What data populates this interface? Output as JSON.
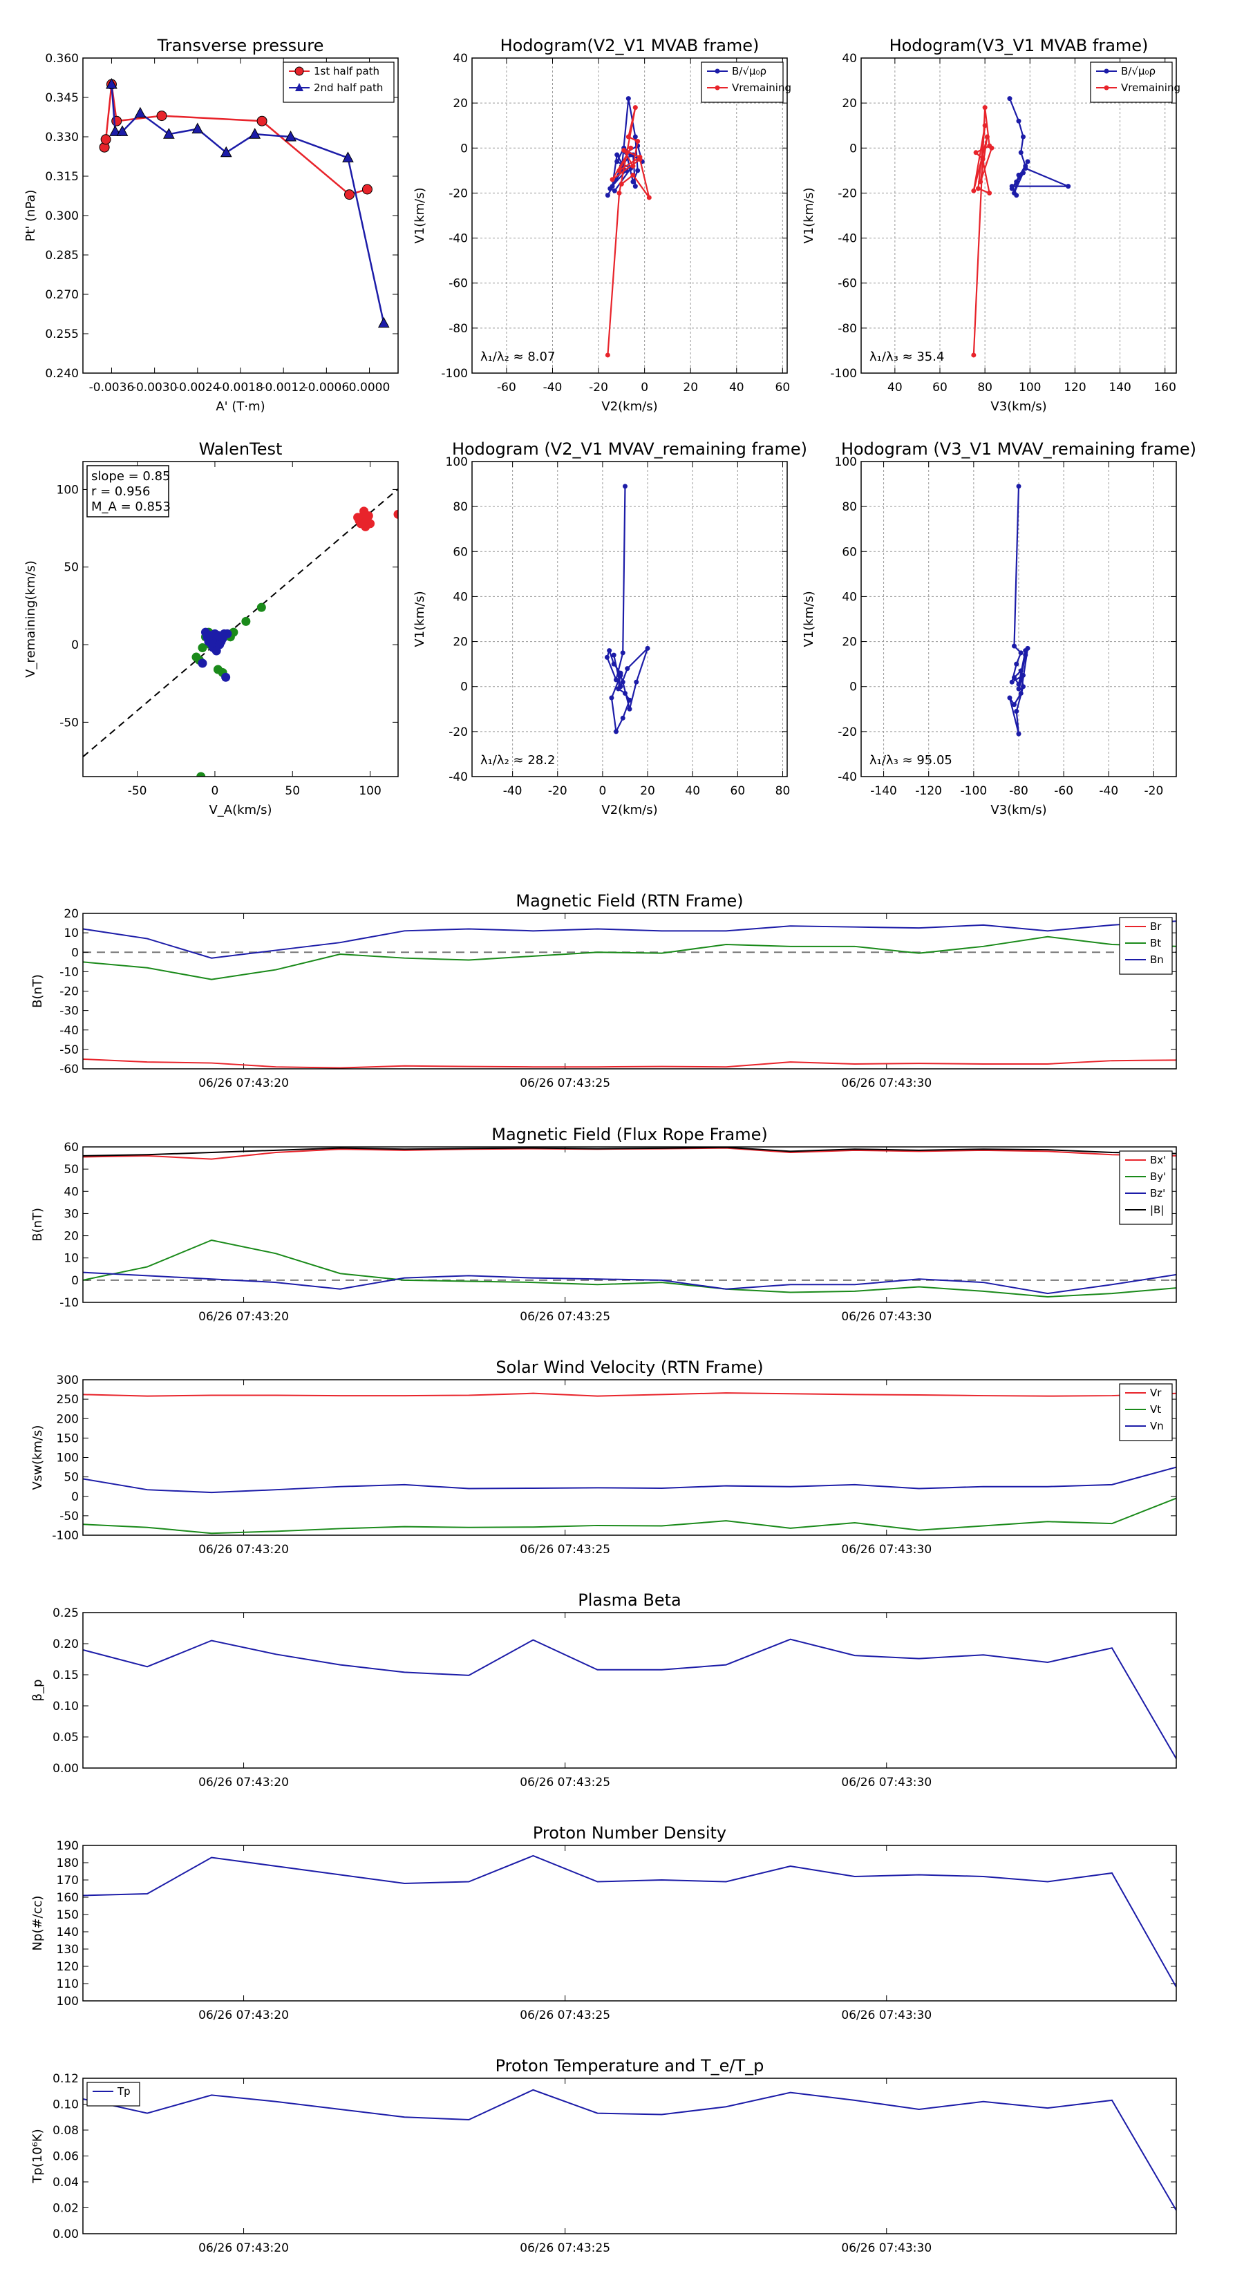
{
  "chart_data": [
    {
      "id": "pt",
      "type": "scatter",
      "title": "Transverse pressure",
      "xlabel": "A' (T·m)",
      "ylabel": "Pt' (nPa)",
      "xlim": [
        -0.004,
        0.0004
      ],
      "ylim": [
        0.24,
        0.36
      ],
      "xticks": [
        -0.0036,
        -0.003,
        -0.0024,
        -0.0018,
        -0.0012,
        -0.0006,
        0.0
      ],
      "xticklabels": [
        "-0.0036",
        "-0.0030",
        "-0.0024",
        "-0.0018",
        "-0.0012",
        "-0.0006",
        "0.0000"
      ],
      "yticks": [
        0.24,
        0.255,
        0.27,
        0.285,
        0.3,
        0.315,
        0.33,
        0.345,
        0.36
      ],
      "yticklabels": [
        "0.240",
        "0.255",
        "0.270",
        "0.285",
        "0.300",
        "0.315",
        "0.330",
        "0.345",
        "0.360"
      ],
      "grid": false,
      "legend_loc": "top-right",
      "series": [
        {
          "name": "1st half path",
          "color": "#e8242b",
          "marker": "circle",
          "x": [
            -0.0037,
            -0.00368,
            -0.0036,
            -0.00353,
            -0.0029,
            -0.0015,
            -0.00028,
            -3e-05
          ],
          "y": [
            0.326,
            0.329,
            0.35,
            0.336,
            0.338,
            0.336,
            0.308,
            0.31
          ]
        },
        {
          "name": "2nd half path",
          "color": "#1c1ca8",
          "marker": "triangle",
          "x": [
            -0.0036,
            -0.00355,
            -0.00345,
            -0.0032,
            -0.0028,
            -0.0024,
            -0.002,
            -0.0016,
            -0.0011,
            -0.0003,
            0.0002
          ],
          "y": [
            0.35,
            0.332,
            0.332,
            0.339,
            0.331,
            0.333,
            0.324,
            0.331,
            0.33,
            0.322,
            0.259
          ]
        }
      ]
    },
    {
      "id": "h1",
      "type": "line",
      "title": "Hodogram(V2_V1 MVAB frame)",
      "xlabel": "V2(km/s)",
      "ylabel": "V1(km/s)",
      "xlim": [
        -75,
        62
      ],
      "ylim": [
        -100,
        40
      ],
      "xticks": [
        -60,
        -40,
        -20,
        0,
        20,
        40,
        60
      ],
      "yticks": [
        -100,
        -80,
        -60,
        -40,
        -20,
        0,
        20,
        40
      ],
      "grid": true,
      "legend_loc": "top-right",
      "annotation": "λ₁/λ₂ ≈ 8.07",
      "series": [
        {
          "name": "B/√μ₀ρ",
          "color": "#1c1ca8",
          "x": [
            -16,
            -10,
            -7,
            -4,
            -3,
            -5,
            -8,
            -3,
            -1,
            -6,
            -10,
            -14,
            -12,
            -8,
            -15,
            -13,
            -6,
            -12,
            -9,
            -5,
            -4
          ],
          "y": [
            -21,
            -10,
            22,
            5,
            -10,
            -15,
            -2,
            1,
            -6,
            -3,
            -8,
            -17,
            -3,
            -10,
            -18,
            -19,
            -9,
            -6,
            0,
            -3,
            -17
          ]
        },
        {
          "name": "Vremaining",
          "color": "#e8242b",
          "x": [
            -16,
            -11,
            -4,
            -7,
            -3,
            -5,
            -9,
            -2,
            -11,
            -6,
            -14,
            -2,
            2,
            -5,
            -10
          ],
          "y": [
            -92,
            -20,
            18,
            5,
            3,
            -8,
            -1,
            -4,
            -10,
            0,
            -14,
            -5,
            -22,
            -12,
            -16
          ]
        }
      ]
    },
    {
      "id": "h2",
      "type": "line",
      "title": "Hodogram(V3_V1 MVAB frame)",
      "xlabel": "V3(km/s)",
      "ylabel": "V1(km/s)",
      "xlim": [
        25,
        165
      ],
      "ylim": [
        -100,
        40
      ],
      "xticks": [
        40,
        60,
        80,
        100,
        120,
        140,
        160
      ],
      "yticks": [
        -100,
        -80,
        -60,
        -40,
        -20,
        0,
        20,
        40
      ],
      "grid": true,
      "legend_loc": "top-right",
      "annotation": "λ₁/λ₃ ≈ 35.4",
      "series": [
        {
          "name": "B/√μ₀ρ",
          "color": "#1c1ca8",
          "x": [
            91,
            95,
            97,
            96,
            98,
            94,
            99,
            92,
            97,
            93,
            95,
            98,
            117,
            92,
            94
          ],
          "y": [
            22,
            12,
            5,
            -2,
            -8,
            -15,
            -6,
            -18,
            -11,
            -20,
            -12,
            -9,
            -17,
            -17,
            -21
          ]
        },
        {
          "name": "Vremaining",
          "color": "#e8242b",
          "x": [
            75,
            80,
            82,
            76,
            79,
            82,
            77,
            80,
            75,
            81,
            78,
            83
          ],
          "y": [
            -92,
            18,
            1,
            -2,
            -5,
            -20,
            -18,
            10,
            -19,
            5,
            -15,
            0
          ]
        }
      ]
    },
    {
      "id": "walen",
      "type": "scatter",
      "title": "WalenTest",
      "xlabel": "V_A(km/s)",
      "ylabel": "V_remaining(km/s)",
      "xlim": [
        -85,
        118
      ],
      "ylim": [
        -85,
        118
      ],
      "xticks": [
        -50,
        0,
        50,
        100
      ],
      "yticks": [
        -50,
        0,
        50,
        100
      ],
      "grid": false,
      "stats": [
        "slope = 0.85",
        "r = 0.956",
        "M_A = 0.853"
      ],
      "fit_slope": 0.85,
      "series": [
        {
          "name": "red",
          "color": "#e8242b",
          "x": [
            93,
            95,
            96,
            98,
            100,
            97,
            94,
            99,
            96,
            92,
            118
          ],
          "y": [
            80,
            82,
            84,
            80,
            78,
            76,
            78,
            83,
            86,
            82,
            84
          ]
        },
        {
          "name": "green",
          "color": "#1a8a1a",
          "x": [
            -10,
            -8,
            -6,
            -12,
            -4,
            0,
            5,
            10,
            12,
            20,
            30,
            2,
            -9,
            -3
          ],
          "y": [
            -10,
            -2,
            5,
            -8,
            8,
            2,
            -18,
            5,
            8,
            15,
            24,
            -16,
            -85,
            0
          ]
        },
        {
          "name": "blue",
          "color": "#1c1ca8",
          "x": [
            -8,
            -5,
            -2,
            0,
            2,
            4,
            6,
            -6,
            -1,
            3,
            5,
            8,
            -3,
            1,
            7,
            -4,
            0,
            5
          ],
          "y": [
            -12,
            5,
            0,
            3,
            6,
            2,
            7,
            8,
            -2,
            0,
            4,
            7,
            6,
            -4,
            -21,
            2,
            7,
            5
          ]
        }
      ]
    },
    {
      "id": "h3",
      "type": "line",
      "title": "Hodogram (V2_V1 MVAV_remaining frame)",
      "xlabel": "V2(km/s)",
      "ylabel": "V1(km/s)",
      "xlim": [
        -58,
        82
      ],
      "ylim": [
        -40,
        100
      ],
      "xticks": [
        -40,
        -20,
        0,
        20,
        40,
        60,
        80
      ],
      "yticks": [
        -40,
        -20,
        0,
        20,
        40,
        60,
        80,
        100
      ],
      "grid": true,
      "annotation": "λ₁/λ₂ ≈ 28.2",
      "series": [
        {
          "name": "V",
          "color": "#1c1ca8",
          "x": [
            10,
            9,
            6,
            2,
            3,
            5,
            8,
            7,
            10,
            12,
            9,
            6,
            4,
            8,
            9,
            12,
            15,
            20,
            11,
            8,
            5
          ],
          "y": [
            89,
            15,
            3,
            13,
            16,
            10,
            6,
            -1,
            -3,
            -6,
            -14,
            -20,
            -5,
            5,
            2,
            -10,
            2,
            17,
            8,
            0,
            14
          ]
        }
      ]
    },
    {
      "id": "h4",
      "type": "line",
      "title": "Hodogram (V3_V1 MVAV_remaining frame)",
      "xlabel": "V3(km/s)",
      "ylabel": "V1(km/s)",
      "xlim": [
        -150,
        -10
      ],
      "ylim": [
        -40,
        100
      ],
      "xticks": [
        -140,
        -120,
        -100,
        -80,
        -60,
        -40,
        -20
      ],
      "yticks": [
        -40,
        -20,
        0,
        20,
        40,
        60,
        80,
        100
      ],
      "grid": true,
      "annotation": "λ₁/λ₃ ≈ 95.05",
      "series": [
        {
          "name": "V",
          "color": "#1c1ca8",
          "x": [
            -80,
            -82,
            -79,
            -81,
            -83,
            -78,
            -80,
            -77,
            -76,
            -79,
            -82,
            -84,
            -80,
            -81,
            -78,
            -79,
            -82,
            -80,
            -77
          ],
          "y": [
            89,
            18,
            15,
            10,
            2,
            5,
            -1,
            14,
            17,
            -3,
            -8,
            -5,
            -21,
            -11,
            0,
            7,
            4,
            1,
            16
          ]
        }
      ]
    },
    {
      "id": "ts_brtn",
      "type": "line",
      "title": "Magnetic Field (RTN Frame)",
      "ylabel": "B(nT)",
      "ylim": [
        -60,
        20
      ],
      "yticks": [
        -60,
        -50,
        -40,
        -30,
        -20,
        -10,
        0,
        10,
        20
      ],
      "xtick_labels": [
        "06/26 07:43:20",
        "06/26 07:43:25",
        "06/26 07:43:30"
      ],
      "zero_line": true,
      "legend_loc": "top-right",
      "series": [
        {
          "name": "Br",
          "color": "#e8242b",
          "values": [
            -55,
            -56.5,
            -57,
            -59,
            -59.5,
            -58.5,
            -58.8,
            -59,
            -59,
            -58.8,
            -59,
            -56.5,
            -57.5,
            -57.2,
            -57.5,
            -57.5,
            -55.8,
            -55.5
          ]
        },
        {
          "name": "Bt",
          "color": "#1a8a1a",
          "values": [
            -5,
            -8,
            -14,
            -9,
            -1,
            -3,
            -4,
            -2,
            0,
            -0.5,
            4,
            3,
            3,
            -0.5,
            3,
            8,
            4,
            3
          ]
        },
        {
          "name": "Bn",
          "color": "#1c1ca8",
          "values": [
            12,
            7,
            -3,
            1,
            5,
            11,
            12,
            11,
            12,
            11,
            11,
            13.5,
            13,
            12.5,
            14,
            11,
            14,
            16
          ]
        }
      ]
    },
    {
      "id": "ts_bfr",
      "type": "line",
      "title": "Magnetic Field (Flux Rope Frame)",
      "ylabel": "B(nT)",
      "ylim": [
        -10,
        60
      ],
      "yticks": [
        -10,
        0,
        10,
        20,
        30,
        40,
        50,
        60
      ],
      "xtick_labels": [
        "06/26 07:43:20",
        "06/26 07:43:25",
        "06/26 07:43:30"
      ],
      "zero_line": true,
      "legend_loc": "top-right",
      "series": [
        {
          "name": "Bx'",
          "color": "#e8242b",
          "values": [
            55.5,
            56,
            54.5,
            57.5,
            59,
            58.5,
            59,
            59.2,
            59,
            59.2,
            59.5,
            57.5,
            58.5,
            58,
            58.5,
            58,
            56.5,
            56
          ]
        },
        {
          "name": "By'",
          "color": "#1a8a1a",
          "values": [
            0,
            6,
            18,
            12,
            3,
            0,
            -0.5,
            -1,
            -2,
            -1,
            -4,
            -5.5,
            -5,
            -3,
            -5,
            -7.5,
            -6,
            -3.5
          ]
        },
        {
          "name": "Bz'",
          "color": "#1c1ca8",
          "values": [
            3.5,
            2,
            0.5,
            -1,
            -4,
            1,
            2,
            1,
            0.5,
            0,
            -4,
            -2,
            -2,
            0.5,
            -1,
            -6,
            -2,
            2.5
          ]
        },
        {
          "name": "|B|",
          "color": "#000000",
          "values": [
            56,
            56.5,
            57.5,
            58.5,
            59.5,
            59,
            59.3,
            59.5,
            59.2,
            59.4,
            59.8,
            58,
            59,
            58.5,
            59,
            58.7,
            57.5,
            57
          ]
        }
      ]
    },
    {
      "id": "ts_v",
      "type": "line",
      "title": "Solar Wind Velocity (RTN Frame)",
      "ylabel": "Vsw(km/s)",
      "ylim": [
        -100,
        300
      ],
      "yticks": [
        -100,
        -50,
        0,
        50,
        100,
        150,
        200,
        250,
        300
      ],
      "xtick_labels": [
        "06/26 07:43:20",
        "06/26 07:43:25",
        "06/26 07:43:30"
      ],
      "legend_loc": "top-right",
      "series": [
        {
          "name": "Vr",
          "color": "#e8242b",
          "values": [
            262,
            258,
            260,
            260,
            259,
            259,
            260,
            265,
            258,
            262,
            266,
            264,
            262,
            261,
            259,
            258,
            259,
            265
          ]
        },
        {
          "name": "Vt",
          "color": "#1a8a1a",
          "values": [
            -72,
            -80,
            -95,
            -90,
            -83,
            -78,
            -80,
            -79,
            -75,
            -76,
            -63,
            -82,
            -68,
            -87,
            -76,
            -65,
            -70,
            -5
          ]
        },
        {
          "name": "Vn",
          "color": "#1c1ca8",
          "values": [
            45,
            17,
            10,
            17,
            25,
            30,
            20,
            21,
            22,
            21,
            27,
            25,
            30,
            20,
            25,
            25,
            30,
            75
          ]
        }
      ]
    },
    {
      "id": "ts_beta",
      "type": "line",
      "title": "Plasma Beta",
      "ylabel": "β_p",
      "ylim": [
        0.0,
        0.25
      ],
      "yticks": [
        0.0,
        0.05,
        0.1,
        0.15,
        0.2,
        0.25
      ],
      "yticklabels": [
        "0.00",
        "0.05",
        "0.10",
        "0.15",
        "0.20",
        "0.25"
      ],
      "xtick_labels": [
        "06/26 07:43:20",
        "06/26 07:43:25",
        "06/26 07:43:30"
      ],
      "series": [
        {
          "name": "beta",
          "color": "#1c1ca8",
          "values": [
            0.19,
            0.163,
            0.205,
            0.183,
            0.166,
            0.154,
            0.149,
            0.206,
            0.158,
            0.158,
            0.166,
            0.207,
            0.181,
            0.176,
            0.182,
            0.17,
            0.193,
            0.015
          ]
        }
      ]
    },
    {
      "id": "ts_np",
      "type": "line",
      "title": "Proton Number Density",
      "ylabel": "Np(#/cc)",
      "ylim": [
        100,
        190
      ],
      "yticks": [
        100,
        110,
        120,
        130,
        140,
        150,
        160,
        170,
        180,
        190
      ],
      "xtick_labels": [
        "06/26 07:43:20",
        "06/26 07:43:25",
        "06/26 07:43:30"
      ],
      "series": [
        {
          "name": "Np",
          "color": "#1c1ca8",
          "values": [
            161,
            162,
            183,
            178,
            173,
            168,
            169,
            184,
            169,
            170,
            169,
            178,
            172,
            173,
            172,
            169,
            174,
            108
          ]
        }
      ]
    },
    {
      "id": "ts_tp",
      "type": "line",
      "title": "Proton Temperature and T_e/T_p",
      "ylabel": "Tp(10⁶K)",
      "ylim": [
        0.0,
        0.12
      ],
      "yticks": [
        0.0,
        0.02,
        0.04,
        0.06,
        0.08,
        0.1,
        0.12
      ],
      "yticklabels": [
        "0.00",
        "0.02",
        "0.04",
        "0.06",
        "0.08",
        "0.10",
        "0.12"
      ],
      "xtick_labels": [
        "06/26 07:43:20",
        "06/26 07:43:25",
        "06/26 07:43:30"
      ],
      "legend_loc": "top-left",
      "series": [
        {
          "name": "Tp",
          "color": "#1c1ca8",
          "values": [
            0.104,
            0.093,
            0.107,
            0.102,
            0.096,
            0.09,
            0.088,
            0.111,
            0.093,
            0.092,
            0.098,
            0.109,
            0.103,
            0.096,
            0.102,
            0.097,
            0.103,
            0.018
          ]
        }
      ]
    }
  ]
}
